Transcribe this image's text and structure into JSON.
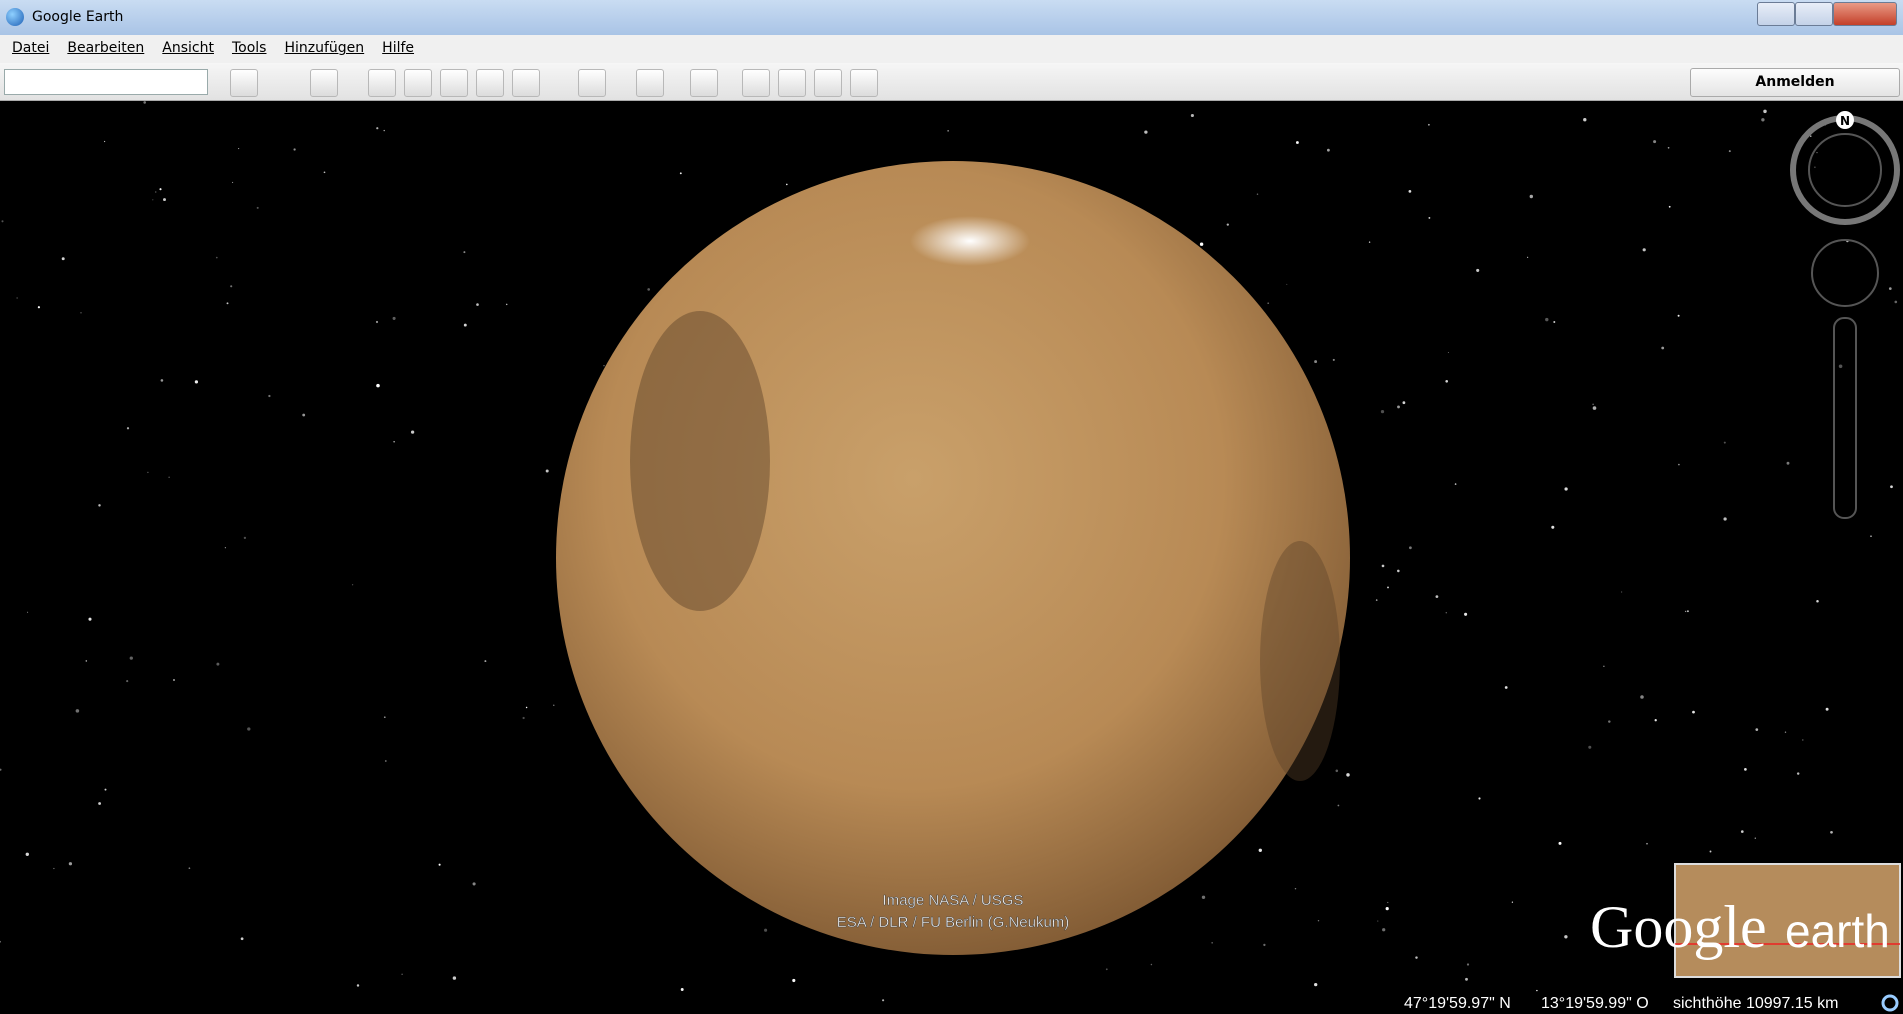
{
  "window": {
    "title": "Google Earth"
  },
  "menu": [
    "Datei",
    "Bearbeiten",
    "Ansicht",
    "Tools",
    "Hinzufügen",
    "Hilfe"
  ],
  "toolbar": {
    "sign_in": "Anmelden"
  },
  "map": {
    "credits": [
      "Image NASA / USGS",
      "ESA / DLR / FU Berlin (G.Neukum)"
    ],
    "logo": {
      "word1": "Google",
      "word2": "earth"
    },
    "compass": "N"
  },
  "status": {
    "latitude": "47°19'59.97\" N",
    "longitude": "13°19'59.99\" O",
    "altitude": "sichthöhe 10997.15 km"
  }
}
